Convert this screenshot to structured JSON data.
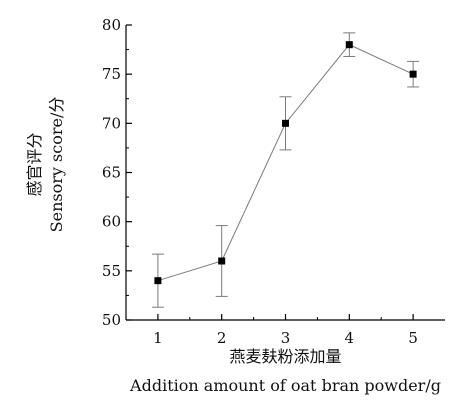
{
  "chart_data": {
    "type": "line",
    "title": "",
    "xlabel_cn": "燕麦麸粉添加量",
    "xlabel_en": "Addition amount of oat bran powder/g",
    "ylabel_cn": "感官评分",
    "ylabel_en": "Sensory score/分",
    "x": [
      1,
      2,
      3,
      4,
      5
    ],
    "series": [
      {
        "values": [
          54,
          56,
          70,
          78,
          75
        ],
        "errors": [
          2.7,
          3.6,
          2.7,
          1.2,
          1.3
        ]
      }
    ],
    "xlim": [
      0.5,
      5.5
    ],
    "ylim": [
      50,
      80
    ],
    "xticks": [
      1,
      2,
      3,
      4,
      5
    ],
    "yticks": [
      50,
      55,
      60,
      65,
      70,
      75,
      80
    ],
    "grid": false,
    "line_color": "#7a7a7a",
    "marker_color": "#000000",
    "axis_color": "#000000"
  }
}
